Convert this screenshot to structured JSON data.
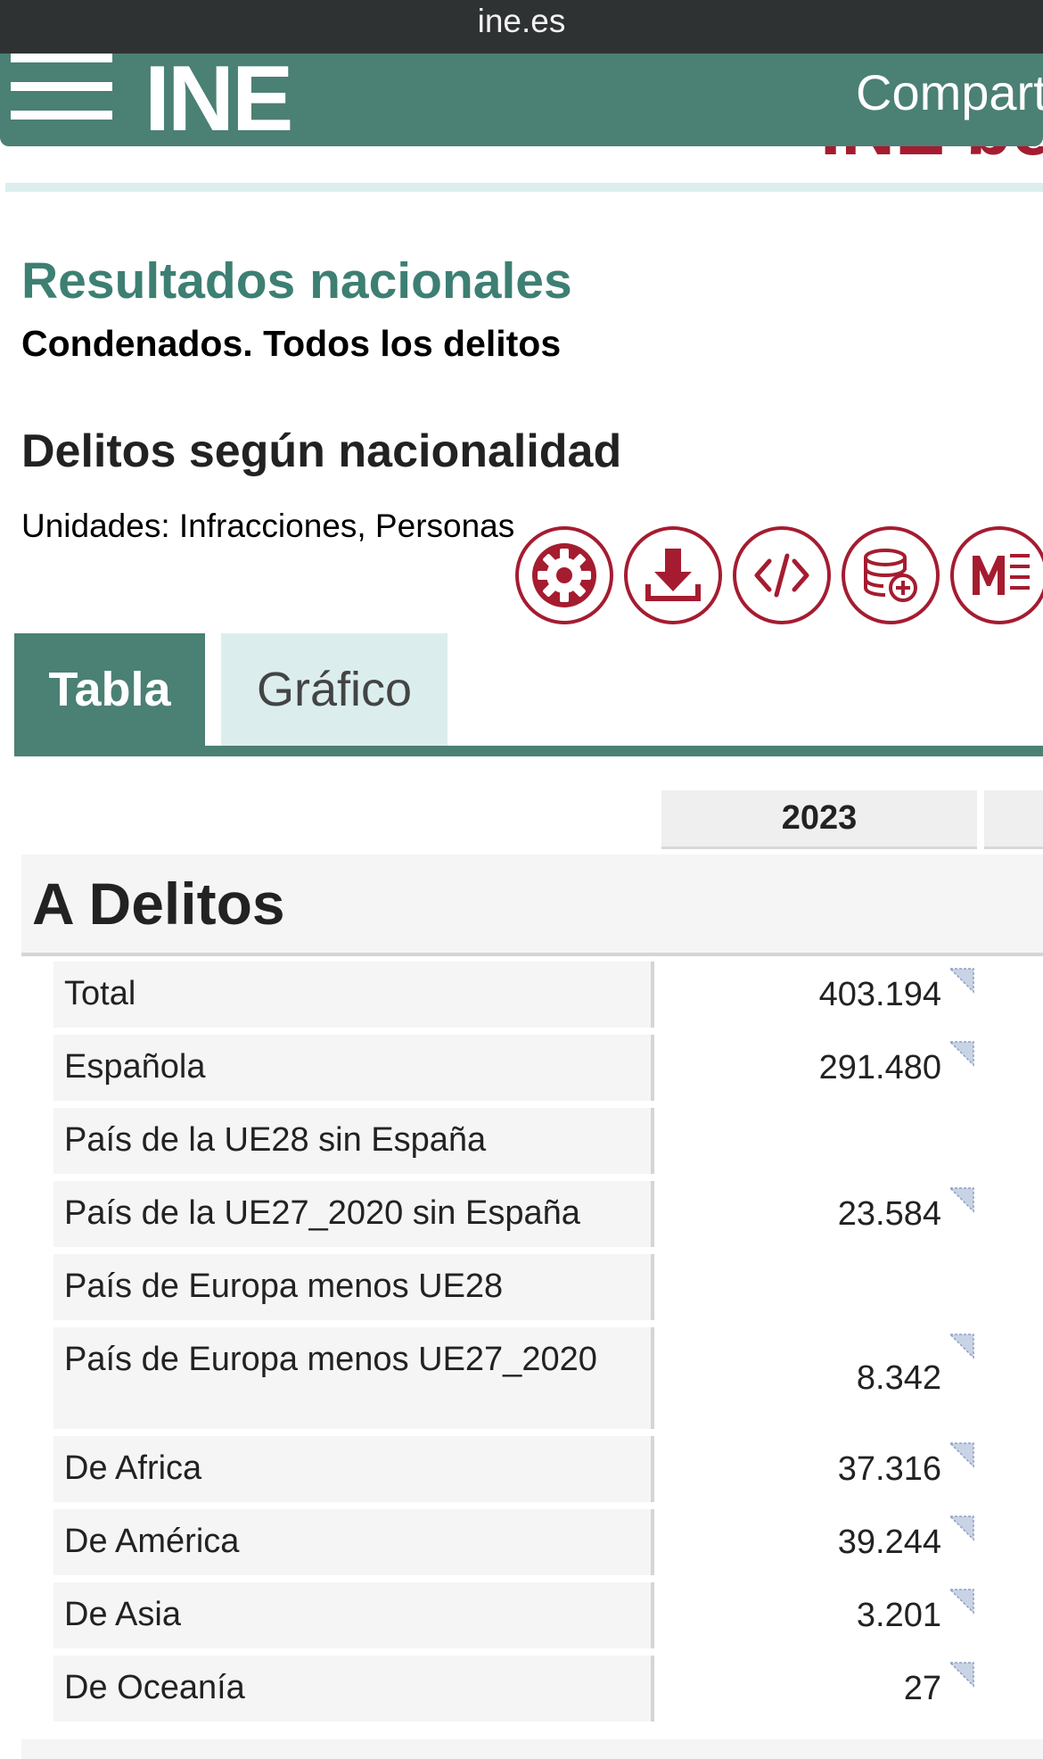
{
  "browser": {
    "url": "ine.es"
  },
  "header": {
    "logo": "INE",
    "share_label": "Compart",
    "red_logo_fragment": "INE be"
  },
  "page": {
    "title": "Resultados nacionales",
    "subtitle": "Condenados. Todos los delitos",
    "section": "Delitos según nacionalidad",
    "units": "Unidades:  Infracciones, Personas"
  },
  "toolbar": {
    "icons": [
      "gear-icon",
      "download-icon",
      "embed-code-icon",
      "database-add-icon",
      "metadata-icon"
    ]
  },
  "tabs": {
    "table_label": "Tabla",
    "chart_label": "Gráfico"
  },
  "table": {
    "year_header": "2023",
    "group_label": "A Delitos",
    "rows": [
      {
        "label": "Total",
        "value": "403.194",
        "flag": true
      },
      {
        "label": "Española",
        "value": "291.480",
        "flag": true
      },
      {
        "label": "País de la UE28 sin España",
        "value": "",
        "flag": false
      },
      {
        "label": "País de la UE27_2020 sin España",
        "value": "23.584",
        "flag": true
      },
      {
        "label": "País de Europa menos UE28",
        "value": "",
        "flag": false
      },
      {
        "label": "País de Europa menos UE27_2020",
        "value": "8.342",
        "flag": true
      },
      {
        "label": "De Africa",
        "value": "37.316",
        "flag": true
      },
      {
        "label": "De América",
        "value": "39.244",
        "flag": true
      },
      {
        "label": "De Asia",
        "value": "3.201",
        "flag": true
      },
      {
        "label": "De Oceanía",
        "value": "27",
        "flag": true
      }
    ]
  },
  "colors": {
    "brand_green": "#4b8074",
    "title_green": "#3d7f73",
    "accent_red": "#a51c30",
    "tab_inactive": "#dbeeed"
  }
}
